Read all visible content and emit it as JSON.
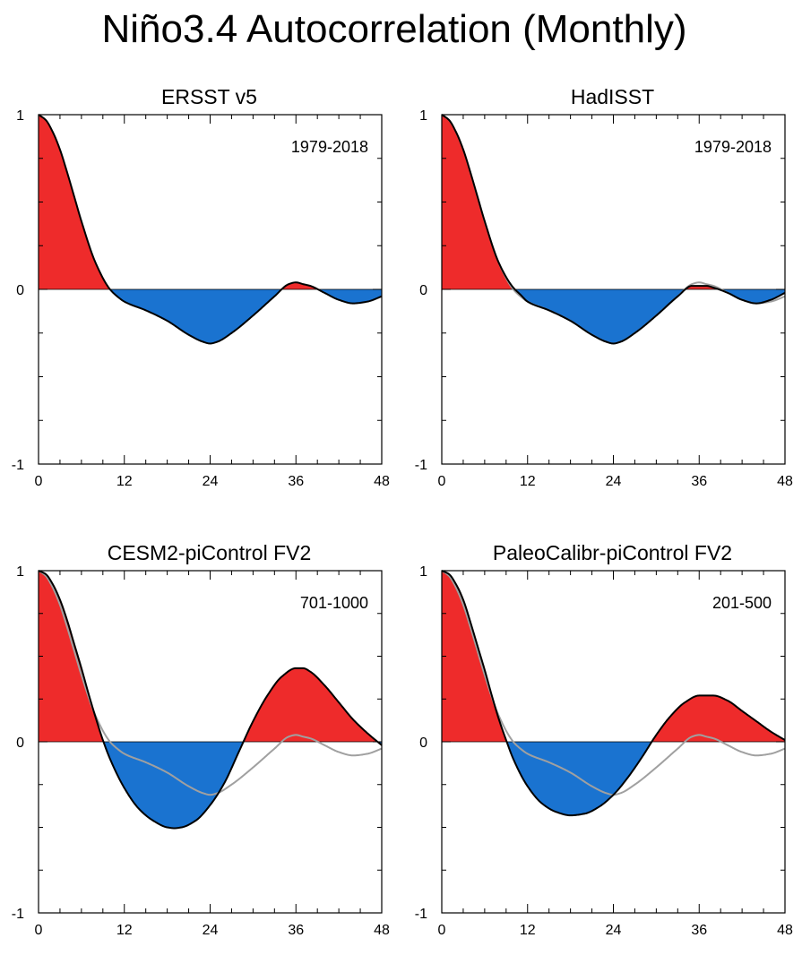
{
  "figure_title": "Niño3.4 Autocorrelation (Monthly)",
  "colors": {
    "positive": "#ee2b2b",
    "negative": "#1a73d0",
    "line": "#000000",
    "reference": "#a0a0a0"
  },
  "chart_data": [
    {
      "type": "area",
      "title": "ERSST v5",
      "period_label": "1979-2018",
      "xlim": [
        0,
        48
      ],
      "ylim": [
        -1,
        1
      ],
      "xticks": [
        0,
        12,
        24,
        36,
        48
      ],
      "xtick_labels": [
        "0",
        "12",
        "24",
        "36",
        "48"
      ],
      "yticks": [
        -1,
        0,
        1
      ],
      "ytick_labels": [
        "-1",
        "0",
        "1"
      ],
      "series": [
        {
          "name": "autocorrelation",
          "role": "main",
          "x": [
            0,
            1,
            2,
            3,
            4,
            5,
            6,
            8,
            10,
            11,
            12,
            15,
            18,
            21,
            23,
            24,
            25,
            27,
            30,
            33,
            35,
            36,
            37,
            38,
            40,
            42,
            44,
            46,
            48
          ],
          "y": [
            1.0,
            0.97,
            0.9,
            0.8,
            0.67,
            0.53,
            0.39,
            0.15,
            0.0,
            -0.04,
            -0.07,
            -0.12,
            -0.18,
            -0.26,
            -0.3,
            -0.31,
            -0.3,
            -0.25,
            -0.15,
            -0.04,
            0.03,
            0.04,
            0.03,
            0.02,
            -0.02,
            -0.06,
            -0.08,
            -0.07,
            -0.04
          ]
        }
      ]
    },
    {
      "type": "area",
      "title": "HadISST",
      "period_label": "1979-2018",
      "xlim": [
        0,
        48
      ],
      "ylim": [
        -1,
        1
      ],
      "xticks": [
        0,
        12,
        24,
        36,
        48
      ],
      "xtick_labels": [
        "0",
        "12",
        "24",
        "36",
        "48"
      ],
      "yticks": [
        -1,
        0,
        1
      ],
      "ytick_labels": [
        "-1",
        "0",
        "1"
      ],
      "series": [
        {
          "name": "autocorrelation",
          "role": "main",
          "x": [
            0,
            1,
            2,
            3,
            4,
            5,
            6,
            8,
            10,
            11,
            12,
            15,
            18,
            21,
            23,
            24,
            25,
            27,
            30,
            33,
            35,
            36,
            37,
            38,
            40,
            42,
            44,
            46,
            48
          ],
          "y": [
            1.0,
            0.97,
            0.9,
            0.8,
            0.67,
            0.53,
            0.39,
            0.15,
            0.01,
            -0.03,
            -0.07,
            -0.12,
            -0.18,
            -0.26,
            -0.3,
            -0.31,
            -0.3,
            -0.25,
            -0.15,
            -0.04,
            0.02,
            0.02,
            0.02,
            0.01,
            -0.02,
            -0.06,
            -0.08,
            -0.06,
            -0.02
          ]
        },
        {
          "name": "ERSST v5 reference",
          "role": "reference",
          "x": [
            0,
            1,
            2,
            3,
            4,
            5,
            6,
            8,
            10,
            11,
            12,
            15,
            18,
            21,
            23,
            24,
            25,
            27,
            30,
            33,
            35,
            36,
            37,
            38,
            40,
            42,
            44,
            46,
            48
          ],
          "y": [
            1.0,
            0.97,
            0.9,
            0.8,
            0.67,
            0.53,
            0.39,
            0.15,
            0.0,
            -0.04,
            -0.07,
            -0.12,
            -0.18,
            -0.26,
            -0.3,
            -0.31,
            -0.3,
            -0.25,
            -0.15,
            -0.04,
            0.03,
            0.04,
            0.03,
            0.02,
            -0.02,
            -0.06,
            -0.08,
            -0.07,
            -0.04
          ]
        }
      ]
    },
    {
      "type": "area",
      "title": "CESM2-piControl FV2",
      "period_label": "701-1000",
      "xlim": [
        0,
        48
      ],
      "ylim": [
        -1,
        1
      ],
      "xticks": [
        0,
        12,
        24,
        36,
        48
      ],
      "xtick_labels": [
        "0",
        "12",
        "24",
        "36",
        "48"
      ],
      "yticks": [
        -1,
        0,
        1
      ],
      "ytick_labels": [
        "-1",
        "0",
        "1"
      ],
      "series": [
        {
          "name": "autocorrelation",
          "role": "main",
          "x": [
            0,
            1,
            2,
            3,
            4,
            5,
            6,
            7,
            8,
            9,
            10,
            12,
            14,
            16,
            18,
            19,
            20,
            22,
            24,
            26,
            28,
            30,
            32,
            34,
            36,
            37,
            38,
            40,
            42,
            44,
            46,
            48
          ],
          "y": [
            1.0,
            0.98,
            0.92,
            0.83,
            0.71,
            0.57,
            0.43,
            0.28,
            0.14,
            0.01,
            -0.1,
            -0.27,
            -0.39,
            -0.46,
            -0.5,
            -0.505,
            -0.5,
            -0.46,
            -0.37,
            -0.24,
            -0.06,
            0.12,
            0.27,
            0.38,
            0.43,
            0.43,
            0.41,
            0.33,
            0.23,
            0.13,
            0.05,
            -0.02
          ]
        },
        {
          "name": "ERSST v5 reference",
          "role": "reference",
          "x": [
            0,
            1,
            2,
            3,
            4,
            5,
            6,
            8,
            10,
            11,
            12,
            15,
            18,
            21,
            23,
            24,
            25,
            27,
            30,
            33,
            35,
            36,
            37,
            38,
            40,
            42,
            44,
            46,
            48
          ],
          "y": [
            1.0,
            0.97,
            0.9,
            0.8,
            0.67,
            0.53,
            0.39,
            0.15,
            0.0,
            -0.04,
            -0.07,
            -0.12,
            -0.18,
            -0.26,
            -0.3,
            -0.31,
            -0.3,
            -0.25,
            -0.15,
            -0.04,
            0.03,
            0.04,
            0.03,
            0.02,
            -0.02,
            -0.06,
            -0.08,
            -0.07,
            -0.04
          ]
        }
      ]
    },
    {
      "type": "area",
      "title": "PaleoCalibr-piControl FV2",
      "period_label": "201-500",
      "xlim": [
        0,
        48
      ],
      "ylim": [
        -1,
        1
      ],
      "xticks": [
        0,
        12,
        24,
        36,
        48
      ],
      "xtick_labels": [
        "0",
        "12",
        "24",
        "36",
        "48"
      ],
      "yticks": [
        -1,
        0,
        1
      ],
      "ytick_labels": [
        "-1",
        "0",
        "1"
      ],
      "series": [
        {
          "name": "autocorrelation",
          "role": "main",
          "x": [
            0,
            1,
            2,
            3,
            4,
            5,
            6,
            7,
            8,
            9,
            10,
            12,
            14,
            16,
            18,
            20,
            22,
            24,
            26,
            28,
            30,
            32,
            34,
            36,
            38,
            40,
            42,
            44,
            46,
            48
          ],
          "y": [
            1.0,
            0.98,
            0.92,
            0.83,
            0.7,
            0.56,
            0.42,
            0.27,
            0.13,
            0.01,
            -0.1,
            -0.26,
            -0.36,
            -0.41,
            -0.43,
            -0.42,
            -0.38,
            -0.31,
            -0.21,
            -0.09,
            0.04,
            0.15,
            0.23,
            0.27,
            0.27,
            0.24,
            0.18,
            0.12,
            0.06,
            0.01
          ]
        },
        {
          "name": "ERSST v5 reference",
          "role": "reference",
          "x": [
            0,
            1,
            2,
            3,
            4,
            5,
            6,
            8,
            10,
            11,
            12,
            15,
            18,
            21,
            23,
            24,
            25,
            27,
            30,
            33,
            35,
            36,
            37,
            38,
            40,
            42,
            44,
            46,
            48
          ],
          "y": [
            1.0,
            0.97,
            0.9,
            0.8,
            0.67,
            0.53,
            0.39,
            0.15,
            0.0,
            -0.04,
            -0.07,
            -0.12,
            -0.18,
            -0.26,
            -0.3,
            -0.31,
            -0.3,
            -0.25,
            -0.15,
            -0.04,
            0.03,
            0.04,
            0.03,
            0.02,
            -0.02,
            -0.06,
            -0.08,
            -0.07,
            -0.04
          ]
        }
      ]
    }
  ]
}
